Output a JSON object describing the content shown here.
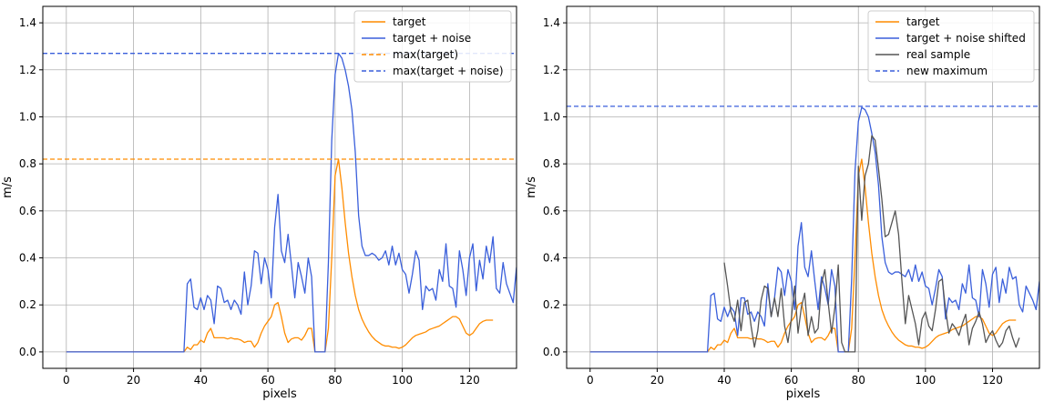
{
  "chart_data": [
    {
      "type": "line",
      "title": "",
      "xlabel": "pixels",
      "ylabel": "m/s",
      "xlim": [
        -7,
        134
      ],
      "ylim": [
        -0.07,
        1.47
      ],
      "xticks": [
        0,
        20,
        40,
        60,
        80,
        100,
        120
      ],
      "yticks": [
        0.0,
        0.2,
        0.4,
        0.6,
        0.8,
        1.0,
        1.2,
        1.4
      ],
      "grid": true,
      "legend_position": "upper-right",
      "x_start": 0,
      "series": [
        {
          "name": "target",
          "color": "#ff8c00",
          "style": "solid",
          "values": [
            0,
            0,
            0,
            0,
            0,
            0,
            0,
            0,
            0,
            0,
            0,
            0,
            0,
            0,
            0,
            0,
            0,
            0,
            0,
            0,
            0,
            0,
            0,
            0,
            0,
            0,
            0,
            0,
            0,
            0,
            0,
            0,
            0,
            0,
            0,
            0,
            0.02,
            0.01,
            0.03,
            0.03,
            0.05,
            0.04,
            0.08,
            0.1,
            0.06,
            0.06,
            0.06,
            0.06,
            0.055,
            0.06,
            0.055,
            0.055,
            0.05,
            0.04,
            0.045,
            0.045,
            0.02,
            0.04,
            0.08,
            0.11,
            0.13,
            0.15,
            0.2,
            0.21,
            0.15,
            0.08,
            0.04,
            0.055,
            0.06,
            0.06,
            0.05,
            0.07,
            0.1,
            0.1,
            0.0,
            0.0,
            0.0,
            0.0,
            0.1,
            0.4,
            0.75,
            0.82,
            0.7,
            0.55,
            0.42,
            0.32,
            0.24,
            0.18,
            0.14,
            0.11,
            0.085,
            0.065,
            0.05,
            0.04,
            0.03,
            0.025,
            0.025,
            0.02,
            0.02,
            0.015,
            0.02,
            0.03,
            0.045,
            0.06,
            0.07,
            0.075,
            0.08,
            0.085,
            0.095,
            0.1,
            0.105,
            0.11,
            0.12,
            0.13,
            0.14,
            0.15,
            0.15,
            0.14,
            0.11,
            0.08,
            0.07,
            0.08,
            0.1,
            0.12,
            0.13,
            0.135,
            0.135,
            0.135
          ]
        },
        {
          "name": "target + noise",
          "color": "#3a5fdb",
          "style": "solid",
          "values": [
            0,
            0,
            0,
            0,
            0,
            0,
            0,
            0,
            0,
            0,
            0,
            0,
            0,
            0,
            0,
            0,
            0,
            0,
            0,
            0,
            0,
            0,
            0,
            0,
            0,
            0,
            0,
            0,
            0,
            0,
            0,
            0,
            0,
            0,
            0,
            0,
            0.29,
            0.31,
            0.19,
            0.18,
            0.23,
            0.18,
            0.24,
            0.22,
            0.12,
            0.28,
            0.27,
            0.21,
            0.22,
            0.18,
            0.22,
            0.2,
            0.16,
            0.34,
            0.2,
            0.28,
            0.43,
            0.42,
            0.29,
            0.4,
            0.35,
            0.23,
            0.53,
            0.67,
            0.43,
            0.38,
            0.5,
            0.37,
            0.23,
            0.38,
            0.32,
            0.25,
            0.4,
            0.32,
            0.0,
            0.0,
            0.0,
            0.0,
            0.38,
            0.9,
            1.18,
            1.27,
            1.25,
            1.2,
            1.13,
            1.03,
            0.85,
            0.58,
            0.45,
            0.41,
            0.41,
            0.42,
            0.41,
            0.39,
            0.4,
            0.43,
            0.37,
            0.45,
            0.37,
            0.42,
            0.35,
            0.33,
            0.25,
            0.33,
            0.43,
            0.39,
            0.18,
            0.28,
            0.26,
            0.27,
            0.22,
            0.35,
            0.3,
            0.46,
            0.28,
            0.27,
            0.19,
            0.43,
            0.35,
            0.24,
            0.4,
            0.46,
            0.26,
            0.39,
            0.31,
            0.45,
            0.38,
            0.49,
            0.27,
            0.25,
            0.38,
            0.29,
            0.25,
            0.21,
            0.36
          ]
        },
        {
          "name": "max(target)",
          "color": "#ff8c00",
          "style": "dashed",
          "hline": 0.82
        },
        {
          "name": "max(target + noise)",
          "color": "#3a5fdb",
          "style": "dashed",
          "hline": 1.27
        }
      ]
    },
    {
      "type": "line",
      "title": "",
      "xlabel": "pixels",
      "ylabel": "m/s",
      "xlim": [
        -7,
        134
      ],
      "ylim": [
        -0.07,
        1.47
      ],
      "xticks": [
        0,
        20,
        40,
        60,
        80,
        100,
        120
      ],
      "yticks": [
        0.0,
        0.2,
        0.4,
        0.6,
        0.8,
        1.0,
        1.2,
        1.4
      ],
      "grid": true,
      "legend_position": "upper-right",
      "x_start": 0,
      "series": [
        {
          "name": "target",
          "color": "#ff8c00",
          "style": "solid",
          "values": [
            0,
            0,
            0,
            0,
            0,
            0,
            0,
            0,
            0,
            0,
            0,
            0,
            0,
            0,
            0,
            0,
            0,
            0,
            0,
            0,
            0,
            0,
            0,
            0,
            0,
            0,
            0,
            0,
            0,
            0,
            0,
            0,
            0,
            0,
            0,
            0,
            0.02,
            0.01,
            0.03,
            0.03,
            0.05,
            0.04,
            0.08,
            0.1,
            0.06,
            0.06,
            0.06,
            0.06,
            0.055,
            0.06,
            0.055,
            0.055,
            0.05,
            0.04,
            0.045,
            0.045,
            0.02,
            0.04,
            0.08,
            0.11,
            0.13,
            0.15,
            0.2,
            0.21,
            0.15,
            0.08,
            0.04,
            0.055,
            0.06,
            0.06,
            0.05,
            0.07,
            0.1,
            0.1,
            0.0,
            0.0,
            0.0,
            0.0,
            0.1,
            0.4,
            0.75,
            0.82,
            0.7,
            0.55,
            0.42,
            0.32,
            0.24,
            0.18,
            0.14,
            0.11,
            0.085,
            0.065,
            0.05,
            0.04,
            0.03,
            0.025,
            0.025,
            0.02,
            0.02,
            0.015,
            0.02,
            0.03,
            0.045,
            0.06,
            0.07,
            0.075,
            0.08,
            0.085,
            0.095,
            0.1,
            0.105,
            0.11,
            0.12,
            0.13,
            0.14,
            0.15,
            0.15,
            0.14,
            0.11,
            0.08,
            0.07,
            0.08,
            0.1,
            0.12,
            0.13,
            0.135,
            0.135,
            0.135
          ]
        },
        {
          "name": "target + noise shifted",
          "color": "#3a5fdb",
          "style": "solid",
          "values": [
            0,
            0,
            0,
            0,
            0,
            0,
            0,
            0,
            0,
            0,
            0,
            0,
            0,
            0,
            0,
            0,
            0,
            0,
            0,
            0,
            0,
            0,
            0,
            0,
            0,
            0,
            0,
            0,
            0,
            0,
            0,
            0,
            0,
            0,
            0,
            0,
            0.24,
            0.25,
            0.14,
            0.13,
            0.19,
            0.15,
            0.19,
            0.17,
            0.07,
            0.23,
            0.23,
            0.16,
            0.17,
            0.13,
            0.17,
            0.15,
            0.11,
            0.29,
            0.15,
            0.23,
            0.36,
            0.34,
            0.24,
            0.35,
            0.3,
            0.18,
            0.45,
            0.55,
            0.36,
            0.32,
            0.43,
            0.3,
            0.18,
            0.32,
            0.27,
            0.2,
            0.35,
            0.28,
            0.0,
            0.0,
            0.0,
            0.0,
            0.31,
            0.77,
            0.98,
            1.04,
            1.03,
            1.0,
            0.93,
            0.85,
            0.71,
            0.49,
            0.38,
            0.34,
            0.33,
            0.34,
            0.34,
            0.33,
            0.32,
            0.35,
            0.3,
            0.37,
            0.3,
            0.34,
            0.28,
            0.27,
            0.2,
            0.27,
            0.35,
            0.32,
            0.14,
            0.23,
            0.21,
            0.22,
            0.18,
            0.29,
            0.25,
            0.37,
            0.23,
            0.22,
            0.15,
            0.35,
            0.29,
            0.19,
            0.33,
            0.36,
            0.21,
            0.31,
            0.25,
            0.36,
            0.31,
            0.32,
            0.2,
            0.17,
            0.28,
            0.25,
            0.22,
            0.18,
            0.3
          ]
        },
        {
          "name": "real sample",
          "color": "#555555",
          "style": "solid",
          "x_start": 40,
          "values": [
            0.38,
            0.28,
            0.17,
            0.13,
            0.22,
            0.09,
            0.21,
            0.22,
            0.11,
            0.02,
            0.09,
            0.22,
            0.28,
            0.27,
            0.15,
            0.23,
            0.15,
            0.27,
            0.11,
            0.04,
            0.14,
            0.28,
            0.08,
            0.19,
            0.25,
            0.07,
            0.15,
            0.08,
            0.1,
            0.29,
            0.35,
            0.21,
            0.08,
            0.19,
            0.37,
            0.04,
            0.0,
            0.0,
            0.0,
            0.0,
            0.79,
            0.56,
            0.75,
            0.8,
            0.92,
            0.9,
            0.78,
            0.65,
            0.49,
            0.5,
            0.55,
            0.6,
            0.5,
            0.3,
            0.12,
            0.24,
            0.18,
            0.12,
            0.03,
            0.14,
            0.17,
            0.11,
            0.09,
            0.18,
            0.3,
            0.31,
            0.18,
            0.08,
            0.12,
            0.1,
            0.07,
            0.12,
            0.16,
            0.03,
            0.1,
            0.13,
            0.17,
            0.12,
            0.04,
            0.07,
            0.09,
            0.05,
            0.02,
            0.04,
            0.09,
            0.11,
            0.06,
            0.02,
            0.06
          ]
        },
        {
          "name": "new maximum",
          "color": "#3a5fdb",
          "style": "dashed",
          "hline": 1.045
        }
      ]
    }
  ]
}
